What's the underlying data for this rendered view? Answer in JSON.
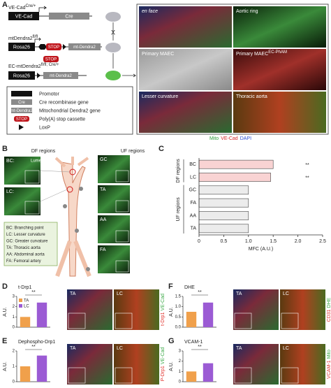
{
  "panel_a": {
    "label": "A",
    "line1_name": "VE-Cad",
    "line1_sup": "Cre/+",
    "line1_promoter": "VE-Cad",
    "line1_gene": "Cre",
    "cross": "X",
    "line2_name": "mtDendra2",
    "line2_sup": "fl/fl",
    "line2_promoter": "Rosa26",
    "line2_stop": "STOP",
    "line2_gene": "mt-Dendra2",
    "removed_stop": "STOP",
    "line3_name": "EC-mtDendra2",
    "line3_sup": "fl/fl; Cre/+",
    "line3_promoter": "Rosa26",
    "line3_gene": "mt-Dendra2",
    "legend": [
      {
        "icon": "",
        "text": "Promotor"
      },
      {
        "icon": "Cre",
        "text": "Cre recombinase gene"
      },
      {
        "icon": "mt-Dendra2",
        "text": "Mitochondrial Dendra2 gene"
      },
      {
        "icon": "STOP",
        "text": "Poly(A) stop cassette"
      },
      {
        "icon": "",
        "text": "LoxP"
      }
    ],
    "images": [
      "en face",
      "Aortic ring",
      "Primary MAEC",
      "Primary MAEC",
      "Lesser curvature",
      "Thoracic aorta"
    ],
    "image_sup": "EC-PhAM",
    "stains": [
      "Mito",
      "VE-Cad",
      "DAPI"
    ],
    "stain_colors": [
      "#2e9e3e",
      "#d6262a",
      "#2a4fd6"
    ]
  },
  "panel_b": {
    "label": "B",
    "left_header": "DF regions",
    "right_header": "UF regions",
    "left_images": [
      "BC:",
      "LC:"
    ],
    "lumen": "Lumen",
    "right_images": [
      "GC",
      "TA",
      "AA",
      "FA"
    ],
    "legend": [
      "BC: Branching point",
      "LC: Lesser curvature",
      "GC: Greater curvature",
      "TA: Thoracic aorta",
      "AA: Abdominal aorta",
      "FA: Femoral artery"
    ]
  },
  "chart_data": [
    {
      "type": "hbar",
      "panel": "C",
      "xlabel": "MFC (A.U.)",
      "xlim": [
        0,
        2.5
      ],
      "xticks": [
        0,
        0.5,
        {
          "value": 1,
          "label": "1.0"
        },
        1.5,
        {
          "value": 2,
          "label": "2.0"
        },
        2.5
      ],
      "series": [
        {
          "name": "DF regions",
          "color": "#f9d3d3",
          "categories": [
            "BC",
            "LC"
          ],
          "values": [
            1.5,
            1.45
          ],
          "significance": [
            "**",
            "**"
          ]
        },
        {
          "name": "UF regions",
          "color": "#ececec",
          "categories": [
            "GC",
            "FA",
            "AA",
            "TA"
          ],
          "values": [
            1.0,
            1.0,
            1.0,
            1.0
          ]
        }
      ]
    },
    {
      "type": "bar",
      "panel": "D",
      "title": "t-Drp1",
      "ylabel": "A.U.",
      "categories": [
        "TA",
        "LC"
      ],
      "values": [
        1.0,
        2.4
      ],
      "colors": [
        "#f0a04b",
        "#9b5bd4"
      ],
      "ylim": [
        0,
        3
      ],
      "yticks": [
        0,
        1,
        2,
        3
      ],
      "significance": "**",
      "image_labels": [
        "TA",
        "LC"
      ],
      "stain_labels": [
        "t-Drp1",
        "VE-Cad"
      ],
      "stain_colors": [
        "#e0302a",
        "#3aa845"
      ]
    },
    {
      "type": "bar",
      "panel": "E",
      "title": "Dephospho-Drp1",
      "ylabel": "A.U.",
      "values": [
        1.0,
        1.7
      ],
      "colors": [
        "#f0a04b",
        "#9b5bd4"
      ],
      "ylim": [
        0,
        2
      ],
      "yticks": [
        0,
        1,
        2
      ],
      "significance": "**",
      "image_labels": [
        "TA",
        "LC"
      ],
      "stain_labels": [
        "P-Drp1",
        "VE-Cad"
      ],
      "stain_colors": [
        "#e0302a",
        "#3aa845"
      ]
    },
    {
      "type": "bar",
      "panel": "F",
      "title": "DHE",
      "ylabel": "A.U.",
      "values": [
        0.75,
        1.2
      ],
      "colors": [
        "#f0a04b",
        "#9b5bd4"
      ],
      "ylim": [
        0,
        1.5
      ],
      "yticks": [
        {
          "value": 0,
          "label": "0.0"
        },
        0.5,
        {
          "value": 1,
          "label": "1.0"
        },
        1.5
      ],
      "significance": "**",
      "image_labels": [
        "TA",
        "LC"
      ],
      "stain_labels": [
        "CD31",
        "DHE"
      ],
      "stain_colors": [
        "#e0302a",
        "#3aa845"
      ]
    },
    {
      "type": "bar",
      "panel": "G",
      "title": "VCAM-1",
      "ylabel": "A.U.",
      "values": [
        1.0,
        1.8
      ],
      "colors": [
        "#f0a04b",
        "#9b5bd4"
      ],
      "ylim": [
        0,
        3
      ],
      "yticks": [
        0,
        1,
        2,
        3
      ],
      "significance": "**",
      "image_labels": [
        "TA",
        "LC"
      ],
      "stain_labels": [
        "VCAM-1",
        "Mito"
      ],
      "stain_colors": [
        "#e0302a",
        "#3aa845"
      ]
    }
  ]
}
